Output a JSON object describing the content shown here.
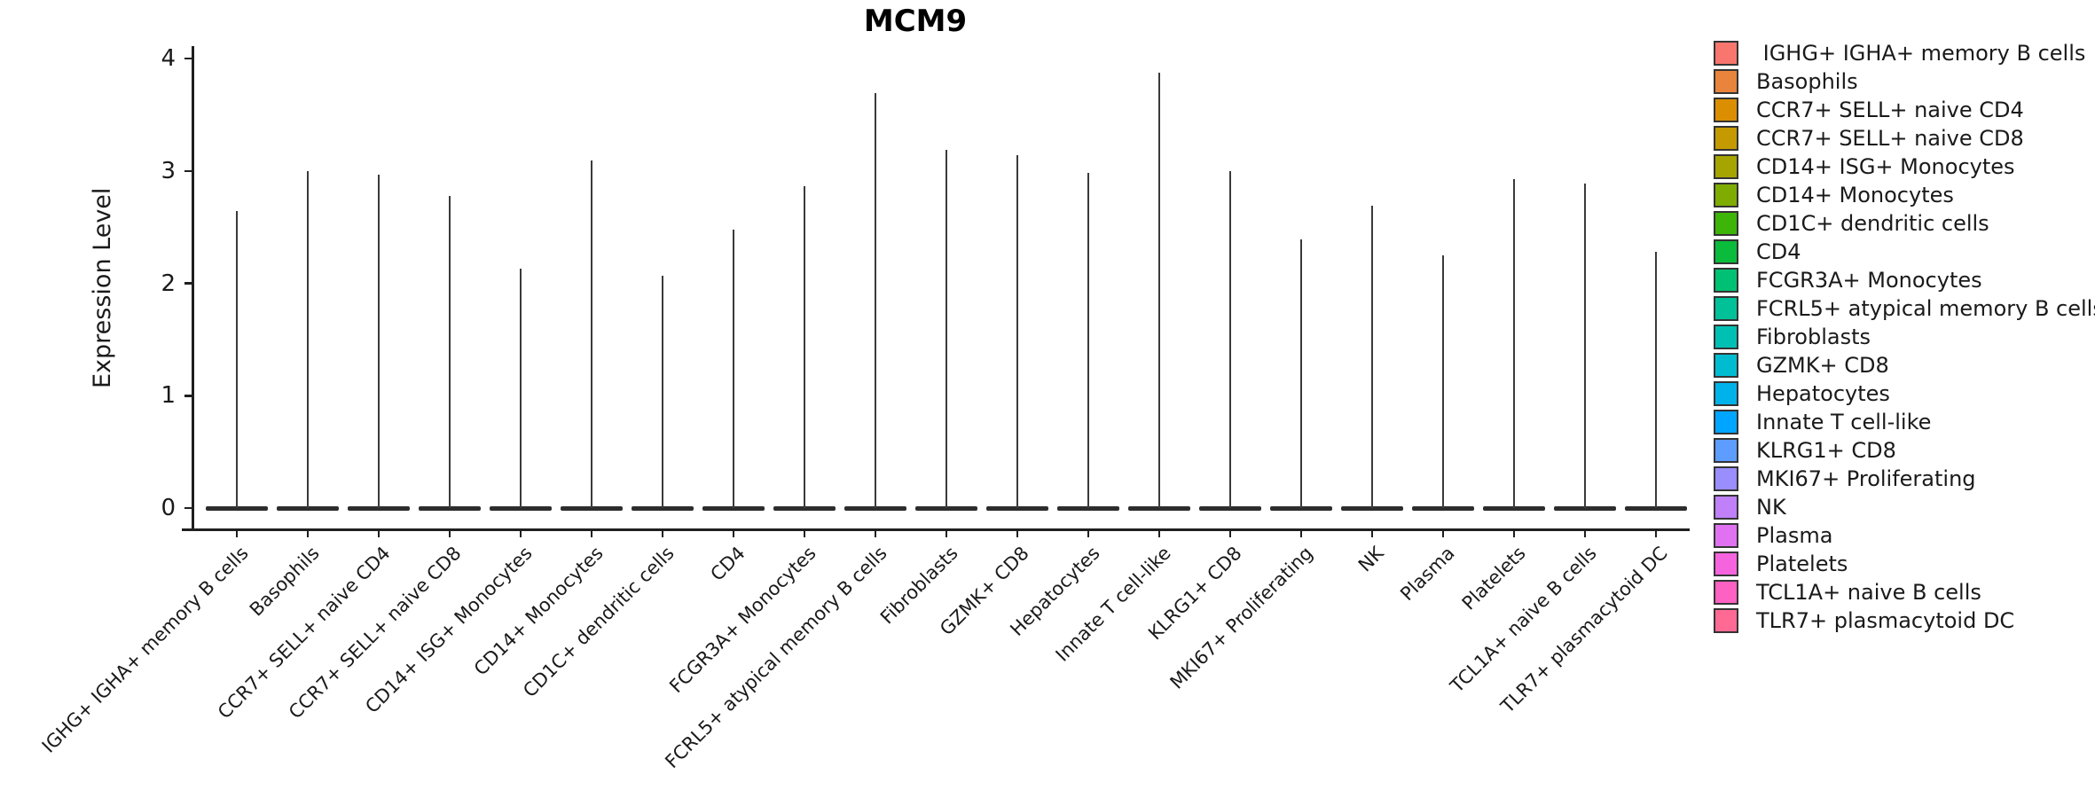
{
  "chart_data": {
    "type": "violin",
    "title": "MCM9",
    "xlabel": "",
    "ylabel": "Expression Level",
    "ylim": [
      0,
      4
    ],
    "yticks": [
      0,
      1,
      2,
      3,
      4
    ],
    "grid": false,
    "legend_position": "right",
    "value_semantics": "peak is the top of each violin spike (maximum expression level); violin bodies are flat at 0",
    "categories": [
      {
        "label": " IGHG+ IGHA+ memory B cells",
        "color": "#F8766D",
        "peak": 2.64
      },
      {
        "label": "Basophils",
        "color": "#E8843B",
        "peak": 3.0
      },
      {
        "label": "CCR7+ SELL+ naive CD4",
        "color": "#DB8E00",
        "peak": 2.97
      },
      {
        "label": "CCR7+ SELL+ naive CD8",
        "color": "#C49A00",
        "peak": 2.78
      },
      {
        "label": "CD14+ ISG+ Monocytes",
        "color": "#A6A400",
        "peak": 2.13
      },
      {
        "label": "CD14+ Monocytes",
        "color": "#7FAC00",
        "peak": 3.09
      },
      {
        "label": "CD1C+ dendritic cells",
        "color": "#3DB508",
        "peak": 2.07
      },
      {
        "label": "CD4",
        "color": "#0ABB3C",
        "peak": 2.48
      },
      {
        "label": "FCGR3A+ Monocytes",
        "color": "#00C073",
        "peak": 2.86
      },
      {
        "label": "FCRL5+ atypical memory B cells",
        "color": "#00C198",
        "peak": 3.69
      },
      {
        "label": "Fibroblasts",
        "color": "#00C0B4",
        "peak": 3.19
      },
      {
        "label": "GZMK+ CD8",
        "color": "#00BCD1",
        "peak": 3.14
      },
      {
        "label": "Hepatocytes",
        "color": "#00B2EA",
        "peak": 2.98
      },
      {
        "label": "Innate T cell-like",
        "color": "#00A5FF",
        "peak": 3.87
      },
      {
        "label": "KLRG1+ CD8",
        "color": "#5C9DFF",
        "peak": 3.0
      },
      {
        "label": "MKI67+ Proliferating",
        "color": "#9A8DFC",
        "peak": 2.39
      },
      {
        "label": "NK",
        "color": "#BF80F8",
        "peak": 2.69
      },
      {
        "label": "Plasma",
        "color": "#E072F2",
        "peak": 2.25
      },
      {
        "label": "Platelets",
        "color": "#F564DE",
        "peak": 2.93
      },
      {
        "label": "TCL1A+ naive B cells",
        "color": "#FD61C2",
        "peak": 2.89
      },
      {
        "label": "TLR7+ plasmacytoid DC",
        "color": "#FF6A94",
        "peak": 2.28
      }
    ],
    "colors": {
      "axis": "#1f1f1f",
      "violin_outline": "#2d2d2d",
      "legend_swatch_border": "#333333"
    }
  }
}
